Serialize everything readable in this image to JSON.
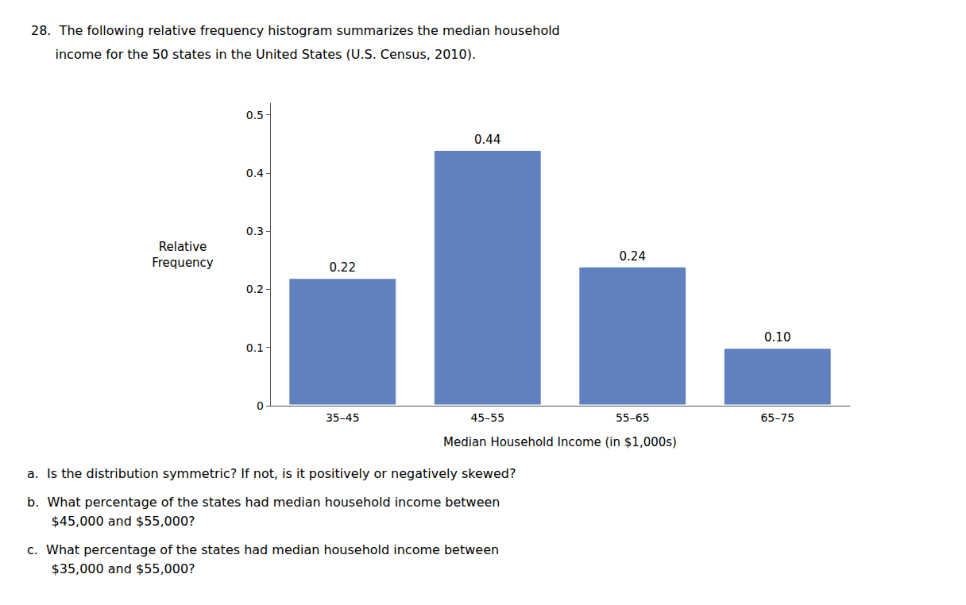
{
  "chart_data": {
    "type": "bar",
    "title": [
      "28.  The following relative frequency histogram summarizes the median household",
      "      income for the 50 states in the United States (U.S. Census, 2010)."
    ],
    "xlabel": "Median Household Income (in $1,000s)",
    "ylabel": "Relative\nFrequency",
    "categories": [
      "35–45",
      "45–55",
      "55–65",
      "65–75"
    ],
    "values": [
      0.22,
      0.44,
      0.24,
      0.1
    ],
    "value_labels": [
      "0.22",
      "0.44",
      "0.24",
      "0.10"
    ],
    "data_labels": true,
    "color": "#6080c0",
    "ylim": [
      0,
      0.52
    ],
    "yticks": [
      0,
      0.1,
      0.2,
      0.3,
      0.4,
      0.5
    ],
    "grid": false,
    "annotations": [
      "a.  Is the distribution symmetric? If not, is it positively or negatively skewed?",
      "b.  What percentage of the states had median household income between",
      "      $45,000 and $55,000?",
      "c.  What percentage of the states had median household income between",
      "      $35,000 and $55,000?"
    ]
  }
}
